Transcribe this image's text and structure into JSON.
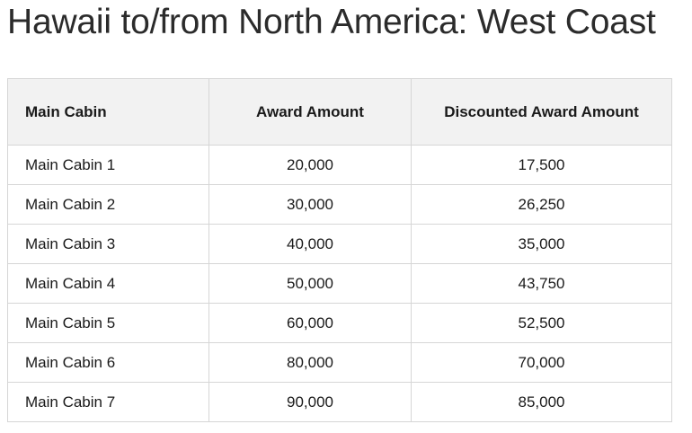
{
  "page": {
    "title": "Hawaii to/from North America: West Coast"
  },
  "table": {
    "headers": [
      "Main Cabin",
      "Award Amount",
      "Discounted Award Amount"
    ],
    "rows": [
      [
        "Main Cabin 1",
        "20,000",
        "17,500"
      ],
      [
        "Main Cabin 2",
        "30,000",
        "26,250"
      ],
      [
        "Main Cabin 3",
        "40,000",
        "35,000"
      ],
      [
        "Main Cabin 4",
        "50,000",
        "43,750"
      ],
      [
        "Main Cabin 5",
        "60,000",
        "52,500"
      ],
      [
        "Main Cabin 6",
        "80,000",
        "70,000"
      ],
      [
        "Main Cabin 7",
        "90,000",
        "85,000"
      ]
    ]
  }
}
